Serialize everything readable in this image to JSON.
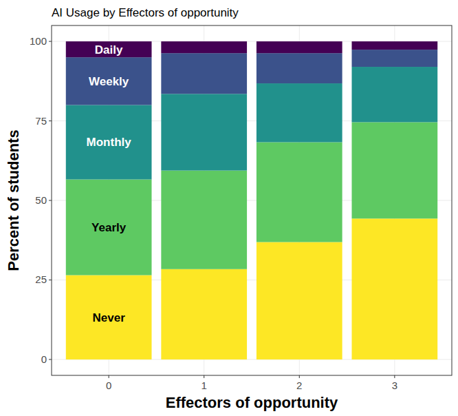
{
  "chart_data": {
    "type": "bar",
    "title": "AI Usage by Effectors of opportunity",
    "x_label": "Effectors of opportunity",
    "y_label": "Percent of students",
    "categories": [
      "0",
      "1",
      "2",
      "3"
    ],
    "series": [
      {
        "name": "Never",
        "color": "#fde725",
        "values": [
          26.5,
          28.4,
          36.9,
          44.3
        ]
      },
      {
        "name": "Yearly",
        "color": "#5ec962",
        "values": [
          30.1,
          31.0,
          31.4,
          30.3
        ]
      },
      {
        "name": "Monthly",
        "color": "#21918c",
        "values": [
          23.4,
          24.1,
          18.5,
          17.4
        ]
      },
      {
        "name": "Weekly",
        "color": "#3b528b",
        "values": [
          15.0,
          12.8,
          9.5,
          5.4
        ]
      },
      {
        "name": "Daily",
        "color": "#440154",
        "values": [
          5.0,
          3.7,
          3.7,
          2.6
        ]
      }
    ],
    "stacked": true,
    "grid": true,
    "ylim": [
      -5,
      105
    ],
    "yticks": [
      0,
      25,
      50,
      75,
      100
    ]
  }
}
